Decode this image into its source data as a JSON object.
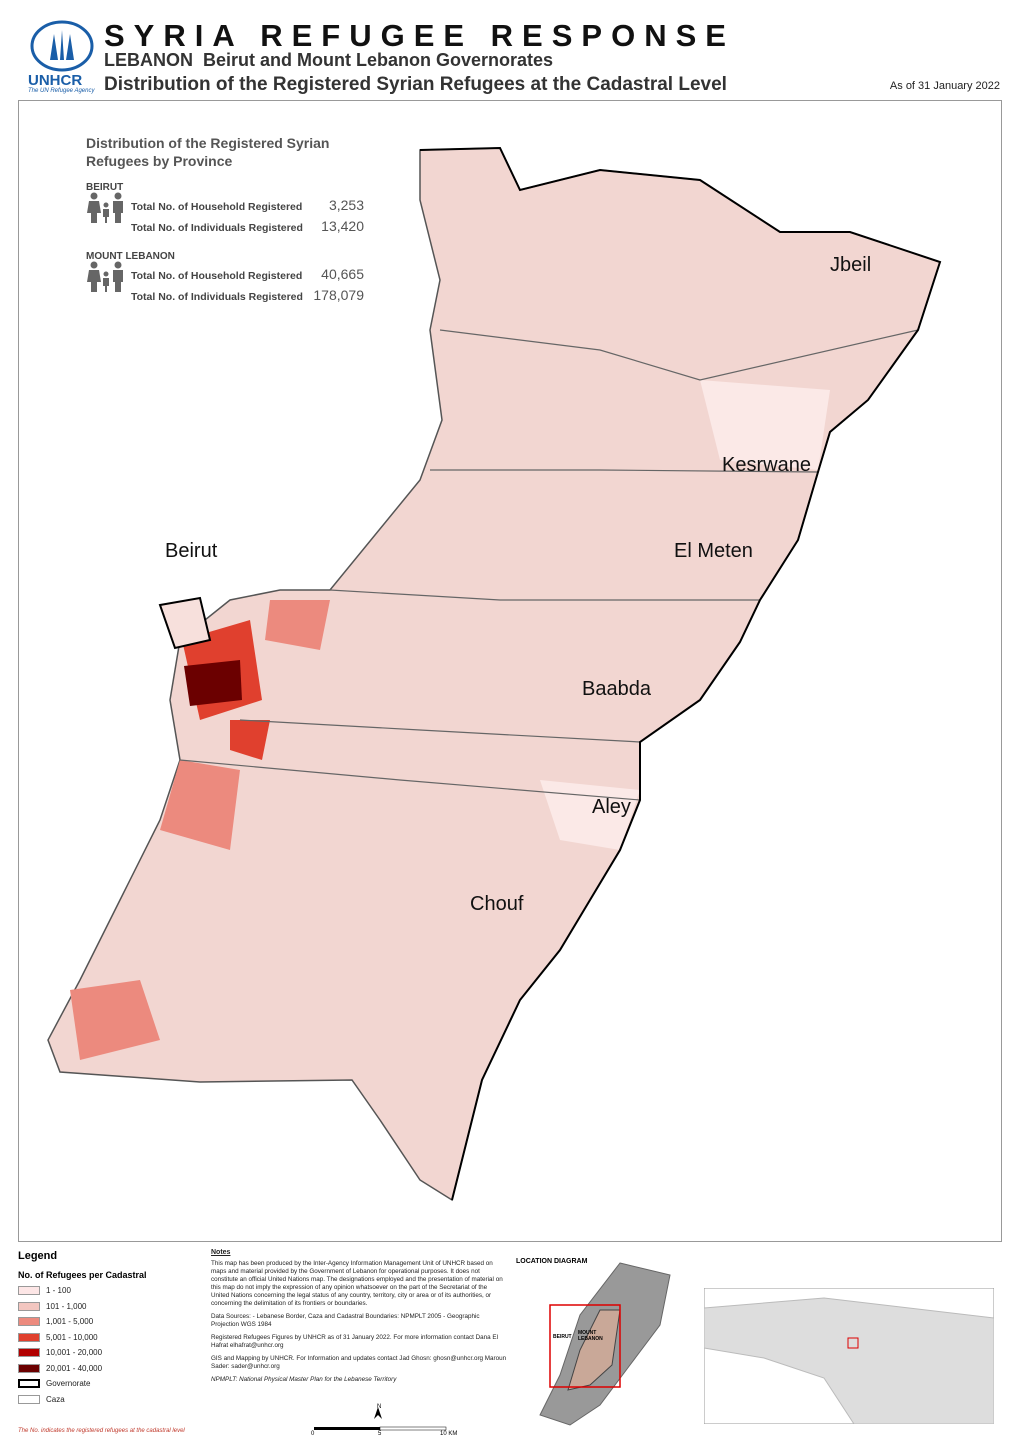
{
  "header": {
    "title": "SYRIA REFUGEE RESPONSE",
    "country": "LEBANON",
    "region": "Beirut and Mount Lebanon Governorates",
    "subtitle": "Distribution of the Registered Syrian Refugees at the Cadastral Level",
    "date": "As of 31 January 2022",
    "logo": "UNHCR",
    "logo_tagline": "The UN Refugee Agency"
  },
  "stats": {
    "title": "Distribution of the Registered Syrian Refugees by Province",
    "provinces": [
      {
        "name": "BEIRUT",
        "rows": [
          {
            "label": "Total No. of Household Registered",
            "value": "3,253"
          },
          {
            "label": "Total No. of Individuals Registered",
            "value": "13,420"
          }
        ]
      },
      {
        "name": "MOUNT LEBANON",
        "rows": [
          {
            "label": "Total No. of Household Registered",
            "value": "40,665"
          },
          {
            "label": "Total No. of Individuals Registered",
            "value": "178,079"
          }
        ]
      }
    ]
  },
  "cazas": [
    "Jbeil",
    "Kesrwane",
    "El Meten",
    "Beirut",
    "Baabda",
    "Aley",
    "Chouf"
  ],
  "legend": {
    "title": "Legend",
    "subtitle": "No. of Refugees per Cadastral",
    "items": [
      {
        "label": "1 - 100",
        "color": "#fde6e6"
      },
      {
        "label": "101 - 1,000",
        "color": "#f3c6c0"
      },
      {
        "label": "1,001 - 5,000",
        "color": "#ec8a7e"
      },
      {
        "label": "5,001 - 10,000",
        "color": "#e0402e"
      },
      {
        "label": "10,001 - 20,000",
        "color": "#b20000"
      },
      {
        "label": "20,001 - 40,000",
        "color": "#6b0000"
      },
      {
        "label": "Governorate",
        "color": "#ffffff"
      },
      {
        "label": "Caza",
        "color": "#ffffff"
      }
    ]
  },
  "notes": {
    "title": "Notes",
    "paragraphs": [
      "This map has been produced by the Inter-Agency Information Management Unit of UNHCR based on maps and material provided by the Government of Lebanon for operational purposes. It does not constitute an official United Nations map. The designations employed and the presentation of material on this map do not imply the expression of any opinion whatsoever on the part of the Secretariat of the United Nations concerning the legal status of any country, territory, city or area or of its authorities, or concerning the delimitation of its frontiers or boundaries.",
      "Data Sources: - Lebanese Border, Caza and Cadastral Boundaries: NPMPLT 2005 - Geographic Projection WGS 1984",
      "Registered Refugees Figures by UNHCR as of 31 January 2022. For more information contact Dana El Hafrat elhafrat@unhcr.org",
      "GIS and Mapping by UNHCR. For Information and updates contact Jad Ghosn: ghosn@unhcr.org Maroun Sader: sader@unhcr.org",
      "NPMPLT: National Physical Master Plan for the Lebanese Territory"
    ]
  },
  "location": {
    "title": "LOCATION DIAGRAM",
    "beirut": "BEIRUT",
    "mount_lebanon": "MOUNT LEBANON"
  },
  "scale": {
    "north": "N",
    "labels": [
      "0",
      "5",
      "10 KM"
    ]
  },
  "footnote": "The No. indicates the registered refugees at the cadastral level"
}
